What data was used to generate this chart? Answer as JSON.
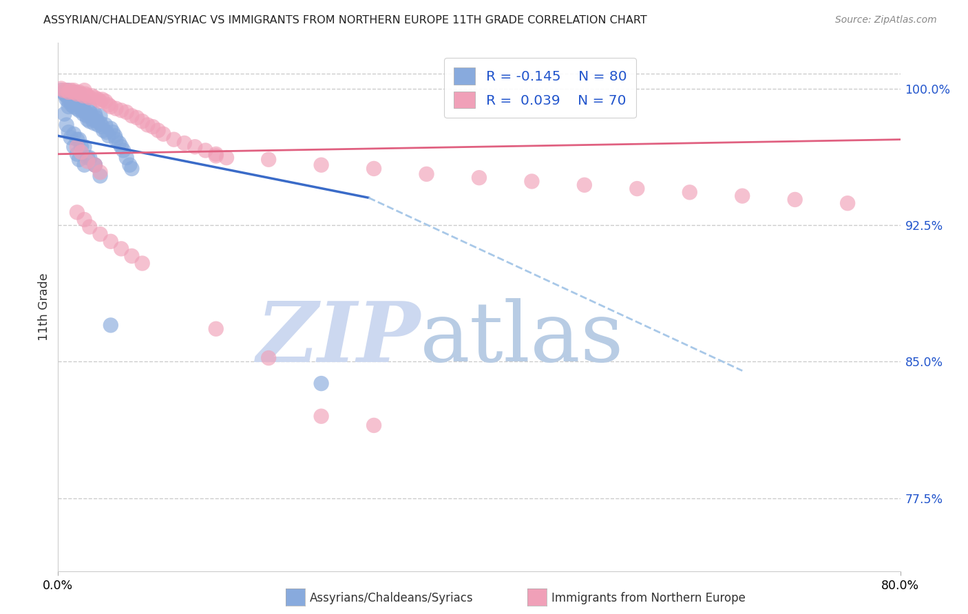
{
  "title": "ASSYRIAN/CHALDEAN/SYRIAC VS IMMIGRANTS FROM NORTHERN EUROPE 11TH GRADE CORRELATION CHART",
  "source": "Source: ZipAtlas.com",
  "ylabel": "11th Grade",
  "x_tick_labels": [
    "0.0%",
    "80.0%"
  ],
  "y_tick_labels": [
    "100.0%",
    "92.5%",
    "85.0%",
    "77.5%"
  ],
  "y_tick_values": [
    1.0,
    0.925,
    0.85,
    0.775
  ],
  "xlim": [
    0.0,
    0.8
  ],
  "ylim": [
    0.735,
    1.025
  ],
  "legend_r1": "R = -0.145",
  "legend_n1": "N = 80",
  "legend_r2": "R =  0.039",
  "legend_n2": "N = 70",
  "blue_color": "#88aadd",
  "pink_color": "#f0a0b8",
  "trendline_blue": "#3a6bc8",
  "trendline_pink": "#e06080",
  "trendline_dashed_color": "#a8c8e8",
  "watermark_zip_color": "#d0dff5",
  "watermark_atlas_color": "#c0d0e8",
  "watermark_text_zip": "ZIP",
  "watermark_text_atlas": "atlas",
  "background_color": "#ffffff",
  "grid_color": "#cccccc",
  "blue_scatter_x": [
    0.003,
    0.005,
    0.006,
    0.008,
    0.008,
    0.009,
    0.01,
    0.01,
    0.01,
    0.012,
    0.012,
    0.013,
    0.014,
    0.015,
    0.015,
    0.015,
    0.016,
    0.018,
    0.018,
    0.019,
    0.02,
    0.02,
    0.02,
    0.02,
    0.021,
    0.022,
    0.023,
    0.024,
    0.025,
    0.025,
    0.026,
    0.027,
    0.028,
    0.03,
    0.03,
    0.03,
    0.032,
    0.033,
    0.034,
    0.035,
    0.036,
    0.037,
    0.038,
    0.04,
    0.04,
    0.042,
    0.043,
    0.045,
    0.046,
    0.048,
    0.05,
    0.052,
    0.054,
    0.055,
    0.058,
    0.06,
    0.062,
    0.065,
    0.068,
    0.07,
    0.018,
    0.022,
    0.028,
    0.035,
    0.04,
    0.015,
    0.02,
    0.025,
    0.03,
    0.035,
    0.006,
    0.008,
    0.01,
    0.012,
    0.015,
    0.018,
    0.02,
    0.025,
    0.05,
    0.25
  ],
  "blue_scatter_y": [
    0.999,
    0.998,
    0.997,
    0.996,
    0.994,
    0.999,
    0.998,
    0.993,
    0.99,
    0.997,
    0.993,
    0.991,
    0.996,
    0.998,
    0.995,
    0.99,
    0.994,
    0.993,
    0.989,
    0.996,
    0.997,
    0.994,
    0.991,
    0.988,
    0.992,
    0.99,
    0.988,
    0.986,
    0.993,
    0.988,
    0.987,
    0.985,
    0.983,
    0.99,
    0.987,
    0.982,
    0.985,
    0.983,
    0.981,
    0.986,
    0.984,
    0.982,
    0.98,
    0.985,
    0.981,
    0.979,
    0.977,
    0.98,
    0.976,
    0.974,
    0.978,
    0.976,
    0.974,
    0.972,
    0.97,
    0.968,
    0.966,
    0.962,
    0.958,
    0.956,
    0.972,
    0.968,
    0.962,
    0.958,
    0.952,
    0.975,
    0.972,
    0.968,
    0.962,
    0.958,
    0.986,
    0.98,
    0.976,
    0.973,
    0.968,
    0.964,
    0.961,
    0.958,
    0.87,
    0.838
  ],
  "pink_scatter_x": [
    0.003,
    0.005,
    0.008,
    0.01,
    0.012,
    0.014,
    0.015,
    0.016,
    0.018,
    0.02,
    0.022,
    0.024,
    0.025,
    0.026,
    0.028,
    0.03,
    0.032,
    0.035,
    0.038,
    0.04,
    0.042,
    0.045,
    0.048,
    0.05,
    0.055,
    0.06,
    0.065,
    0.07,
    0.075,
    0.08,
    0.085,
    0.09,
    0.095,
    0.1,
    0.11,
    0.12,
    0.13,
    0.14,
    0.15,
    0.16,
    0.018,
    0.022,
    0.028,
    0.035,
    0.04,
    0.15,
    0.2,
    0.25,
    0.3,
    0.35,
    0.4,
    0.45,
    0.5,
    0.55,
    0.6,
    0.65,
    0.7,
    0.75,
    0.018,
    0.025,
    0.03,
    0.04,
    0.05,
    0.06,
    0.07,
    0.08,
    0.15,
    0.2,
    0.25,
    0.3
  ],
  "pink_scatter_y": [
    1.0,
    0.999,
    0.999,
    0.998,
    0.999,
    0.998,
    0.999,
    0.998,
    0.997,
    0.998,
    0.997,
    0.996,
    0.999,
    0.997,
    0.996,
    0.995,
    0.996,
    0.995,
    0.994,
    0.993,
    0.994,
    0.993,
    0.991,
    0.99,
    0.989,
    0.988,
    0.987,
    0.985,
    0.984,
    0.982,
    0.98,
    0.979,
    0.977,
    0.975,
    0.972,
    0.97,
    0.968,
    0.966,
    0.964,
    0.962,
    0.968,
    0.965,
    0.96,
    0.958,
    0.954,
    0.963,
    0.961,
    0.958,
    0.956,
    0.953,
    0.951,
    0.949,
    0.947,
    0.945,
    0.943,
    0.941,
    0.939,
    0.937,
    0.932,
    0.928,
    0.924,
    0.92,
    0.916,
    0.912,
    0.908,
    0.904,
    0.868,
    0.852,
    0.82,
    0.815
  ],
  "blue_trendline": [
    [
      0.0,
      0.974
    ],
    [
      0.295,
      0.94
    ]
  ],
  "blue_dashed_trendline": [
    [
      0.295,
      0.94
    ],
    [
      0.65,
      0.845
    ]
  ],
  "pink_trendline": [
    [
      0.0,
      0.964
    ],
    [
      0.8,
      0.972
    ]
  ]
}
